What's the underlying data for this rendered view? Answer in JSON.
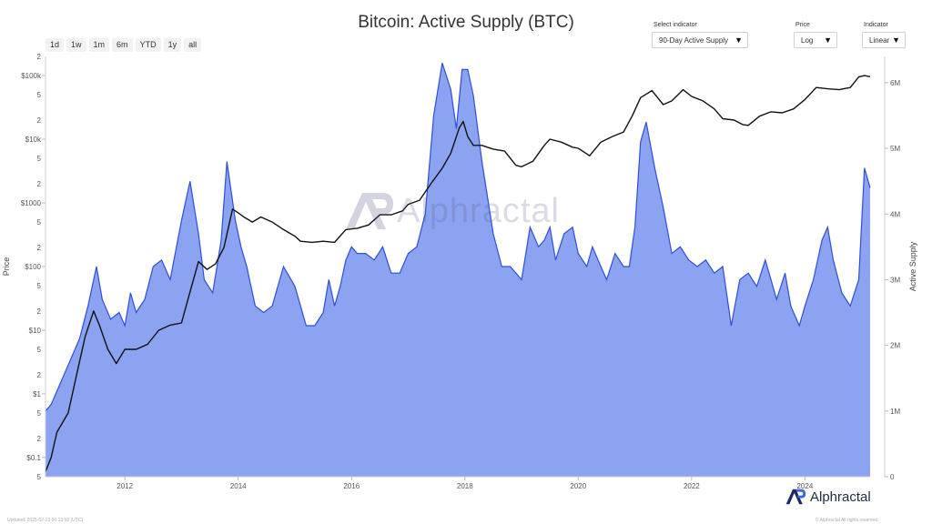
{
  "title": "Bitcoin: Active Supply (BTC)",
  "range_buttons": [
    "1d",
    "1w",
    "1m",
    "6m",
    "YTD",
    "1y",
    "all"
  ],
  "controls": {
    "indicator_select": {
      "label": "Select indicator",
      "value": "90-Day Active Supply"
    },
    "price_scale": {
      "label": "Price",
      "value": "Log"
    },
    "indicator_scale": {
      "label": "Indicator",
      "value": "Linear"
    }
  },
  "watermark": "Alphractal",
  "brand": "Alphractal",
  "footer_left": "Updated: 2025-02-23 06:13:58 (UTC)",
  "footer_right": "© Alphractal All rights reserved",
  "colors": {
    "area_fill": "#8ba3f0",
    "area_line": "#2f4fd6",
    "price_line": "#111111"
  },
  "chart_data": {
    "type": "line",
    "title": "Bitcoin: Active Supply (BTC)",
    "x_ticks": [
      "2012",
      "2014",
      "2016",
      "2018",
      "2020",
      "2022",
      "2024"
    ],
    "xlim": [
      2010.6,
      2025.15
    ],
    "y_left": {
      "label": "Price",
      "scale": "log",
      "range": [
        0.05,
        200000
      ],
      "major_ticks": [
        "$0.1",
        "$1",
        "$10",
        "$100",
        "$1000",
        "$10k",
        "$100k"
      ],
      "minor_tick_labels": [
        "5",
        "2",
        "5",
        "2",
        "5",
        "2",
        "5",
        "2",
        "5",
        "2",
        "5",
        "2",
        "5",
        "2",
        "5",
        "2"
      ]
    },
    "y_right": {
      "label": "Active Supply",
      "scale": "linear",
      "range": [
        0,
        6400000
      ],
      "ticks": [
        "0",
        "1M",
        "2M",
        "3M",
        "4M",
        "5M",
        "6M"
      ]
    },
    "grid": false,
    "series": [
      {
        "name": "Active Supply",
        "axis": "right",
        "style": "area",
        "x": [
          2010.6,
          2010.7,
          2010.85,
          2011.0,
          2011.2,
          2011.35,
          2011.5,
          2011.6,
          2011.75,
          2011.9,
          2012.0,
          2012.1,
          2012.2,
          2012.35,
          2012.5,
          2012.65,
          2012.8,
          2013.0,
          2013.15,
          2013.3,
          2013.4,
          2013.55,
          2013.7,
          2013.8,
          2013.95,
          2014.05,
          2014.15,
          2014.3,
          2014.45,
          2014.6,
          2014.8,
          2015.0,
          2015.2,
          2015.35,
          2015.5,
          2015.6,
          2015.7,
          2015.8,
          2015.9,
          2016.0,
          2016.1,
          2016.25,
          2016.4,
          2016.55,
          2016.7,
          2016.85,
          2017.0,
          2017.15,
          2017.3,
          2017.45,
          2017.6,
          2017.75,
          2017.85,
          2017.95,
          2018.05,
          2018.15,
          2018.3,
          2018.5,
          2018.65,
          2018.8,
          2019.0,
          2019.15,
          2019.3,
          2019.4,
          2019.5,
          2019.6,
          2019.75,
          2019.9,
          2020.0,
          2020.15,
          2020.25,
          2020.35,
          2020.5,
          2020.65,
          2020.8,
          2020.9,
          2021.0,
          2021.1,
          2021.2,
          2021.35,
          2021.5,
          2021.65,
          2021.8,
          2021.95,
          2022.1,
          2022.25,
          2022.4,
          2022.55,
          2022.7,
          2022.85,
          2023.0,
          2023.15,
          2023.3,
          2023.5,
          2023.65,
          2023.75,
          2023.9,
          2024.0,
          2024.15,
          2024.3,
          2024.4,
          2024.5,
          2024.65,
          2024.8,
          2024.95,
          2025.05,
          2025.15
        ],
        "y": [
          1000000,
          1100000,
          1400000,
          1700000,
          2100000,
          2600000,
          3200000,
          2700000,
          2400000,
          2500000,
          2300000,
          2800000,
          2500000,
          2700000,
          3200000,
          3300000,
          3000000,
          3900000,
          4500000,
          3700000,
          3000000,
          2800000,
          3600000,
          4800000,
          3900000,
          3500000,
          3200000,
          2600000,
          2500000,
          2600000,
          3200000,
          2900000,
          2300000,
          2300000,
          2500000,
          3000000,
          2600000,
          2900000,
          3300000,
          3500000,
          3400000,
          3400000,
          3300000,
          3500000,
          3100000,
          3100000,
          3400000,
          3500000,
          4000000,
          5500000,
          6300000,
          5900000,
          5300000,
          6200000,
          6200000,
          5800000,
          4800000,
          3700000,
          3200000,
          3200000,
          3000000,
          3800000,
          3500000,
          3600000,
          3800000,
          3300000,
          3700000,
          3800000,
          3400000,
          3200000,
          3500000,
          3300000,
          3000000,
          3400000,
          3200000,
          3200000,
          3800000,
          5100000,
          5400000,
          4700000,
          4100000,
          3400000,
          3500000,
          3300000,
          3200000,
          3300000,
          3100000,
          3200000,
          2300000,
          3000000,
          3100000,
          2900000,
          3300000,
          2700000,
          3100000,
          2600000,
          2300000,
          2600000,
          3000000,
          3600000,
          3800000,
          3300000,
          2800000,
          2600000,
          3000000,
          4700000,
          4400000
        ]
      },
      {
        "name": "Price",
        "axis": "left",
        "style": "line",
        "x": [
          2010.6,
          2010.7,
          2010.8,
          2011.0,
          2011.15,
          2011.3,
          2011.45,
          2011.55,
          2011.7,
          2011.85,
          2012.0,
          2012.2,
          2012.4,
          2012.6,
          2012.8,
          2013.0,
          2013.15,
          2013.3,
          2013.45,
          2013.6,
          2013.75,
          2013.9,
          2014.0,
          2014.1,
          2014.25,
          2014.4,
          2014.6,
          2014.8,
          2015.0,
          2015.1,
          2015.3,
          2015.5,
          2015.7,
          2015.9,
          2016.1,
          2016.3,
          2016.5,
          2016.7,
          2016.9,
          2017.0,
          2017.2,
          2017.4,
          2017.6,
          2017.75,
          2017.9,
          2017.97,
          2018.05,
          2018.15,
          2018.3,
          2018.5,
          2018.7,
          2018.9,
          2019.0,
          2019.2,
          2019.4,
          2019.5,
          2019.7,
          2019.9,
          2020.0,
          2020.2,
          2020.4,
          2020.6,
          2020.8,
          2020.95,
          2021.1,
          2021.3,
          2021.5,
          2021.65,
          2021.85,
          2022.0,
          2022.2,
          2022.4,
          2022.55,
          2022.75,
          2022.9,
          2023.0,
          2023.2,
          2023.4,
          2023.6,
          2023.8,
          2024.0,
          2024.2,
          2024.4,
          2024.6,
          2024.8,
          2024.95,
          2025.05,
          2025.15
        ],
        "y": [
          0.06,
          0.1,
          0.25,
          0.5,
          2,
          8,
          20,
          12,
          5,
          3,
          5,
          5,
          6,
          10,
          12,
          13,
          40,
          120,
          90,
          110,
          200,
          800,
          700,
          600,
          500,
          600,
          500,
          380,
          300,
          250,
          240,
          250,
          240,
          380,
          400,
          450,
          650,
          650,
          750,
          950,
          1100,
          2000,
          3500,
          6000,
          15000,
          19000,
          11000,
          8000,
          8000,
          7000,
          6500,
          3900,
          3700,
          4500,
          8000,
          10000,
          9000,
          7500,
          7200,
          5500,
          9000,
          11000,
          13000,
          23000,
          45000,
          58000,
          35000,
          40000,
          60000,
          47000,
          40000,
          30000,
          21000,
          20000,
          17000,
          16500,
          23000,
          27000,
          26000,
          30000,
          42000,
          65000,
          62000,
          60000,
          65000,
          95000,
          100000,
          96000
        ]
      }
    ]
  }
}
